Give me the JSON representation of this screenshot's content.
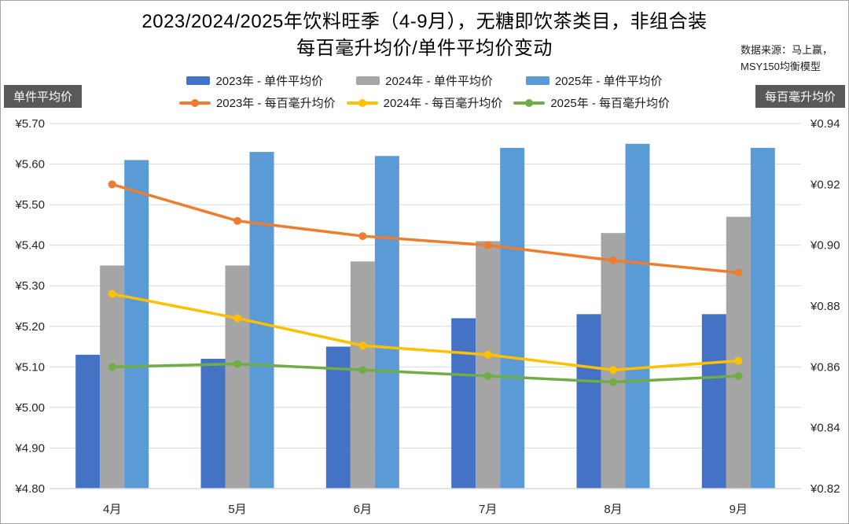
{
  "header": {
    "title_line1": "2023/2024/2025年饮料旺季（4-9月），无糖即饮茶类目，非组合装",
    "title_line2": "每百毫升均价/单件平均价变动",
    "source_line1": "数据来源：马上赢，",
    "source_line2": "MSY150均衡模型"
  },
  "axis_badges": {
    "left_label": "单件平均价",
    "right_label": "每百毫升均价",
    "bg_color": "#595959"
  },
  "chart_data": {
    "type": "combo bar+line, dual y-axis",
    "categories": [
      "4月",
      "5月",
      "6月",
      "7月",
      "8月",
      "9月"
    ],
    "grid_color": "#d9d9d9",
    "grid": "horizontal gridlines at left-axis ticks only",
    "legend_position": "top, two rows",
    "bar_series": [
      {
        "name": "2023年 - 单件平均价",
        "color": "#4472C4",
        "axis": "left",
        "values": [
          5.13,
          5.12,
          5.15,
          5.22,
          5.23,
          5.23
        ]
      },
      {
        "name": "2024年 - 单件平均价",
        "color": "#A5A5A5",
        "axis": "left",
        "values": [
          5.35,
          5.35,
          5.36,
          5.41,
          5.43,
          5.47
        ]
      },
      {
        "name": "2025年 - 单件平均价",
        "color": "#5B9BD5",
        "axis": "left",
        "values": [
          5.61,
          5.63,
          5.62,
          5.64,
          5.65,
          5.64
        ]
      }
    ],
    "line_series": [
      {
        "name": "2023年 - 每百毫升均价",
        "color": "#ED7D31",
        "axis": "right",
        "values": [
          0.92,
          0.908,
          0.903,
          0.9,
          0.895,
          0.891
        ]
      },
      {
        "name": "2024年 - 每百毫升均价",
        "color": "#FFC000",
        "axis": "right",
        "values": [
          0.884,
          0.876,
          0.867,
          0.864,
          0.859,
          0.862
        ]
      },
      {
        "name": "2025年 - 每百毫升均价",
        "color": "#70AD47",
        "axis": "right",
        "values": [
          0.86,
          0.861,
          0.859,
          0.857,
          0.855,
          0.857
        ]
      }
    ],
    "left_axis": {
      "title": "单件平均价",
      "min": 4.8,
      "max": 5.7,
      "tick_step": 0.1,
      "tick_labels": [
        "¥5.70",
        "¥5.60",
        "¥5.50",
        "¥5.40",
        "¥5.30",
        "¥5.20",
        "¥5.10",
        "¥5.00",
        "¥4.90",
        "¥4.80"
      ]
    },
    "right_axis": {
      "title": "每百毫升均价",
      "min": 0.82,
      "max": 0.94,
      "tick_step": 0.02,
      "tick_labels": [
        "¥0.94",
        "¥0.92",
        "¥0.90",
        "¥0.88",
        "¥0.86",
        "¥0.84",
        "¥0.82"
      ]
    }
  }
}
